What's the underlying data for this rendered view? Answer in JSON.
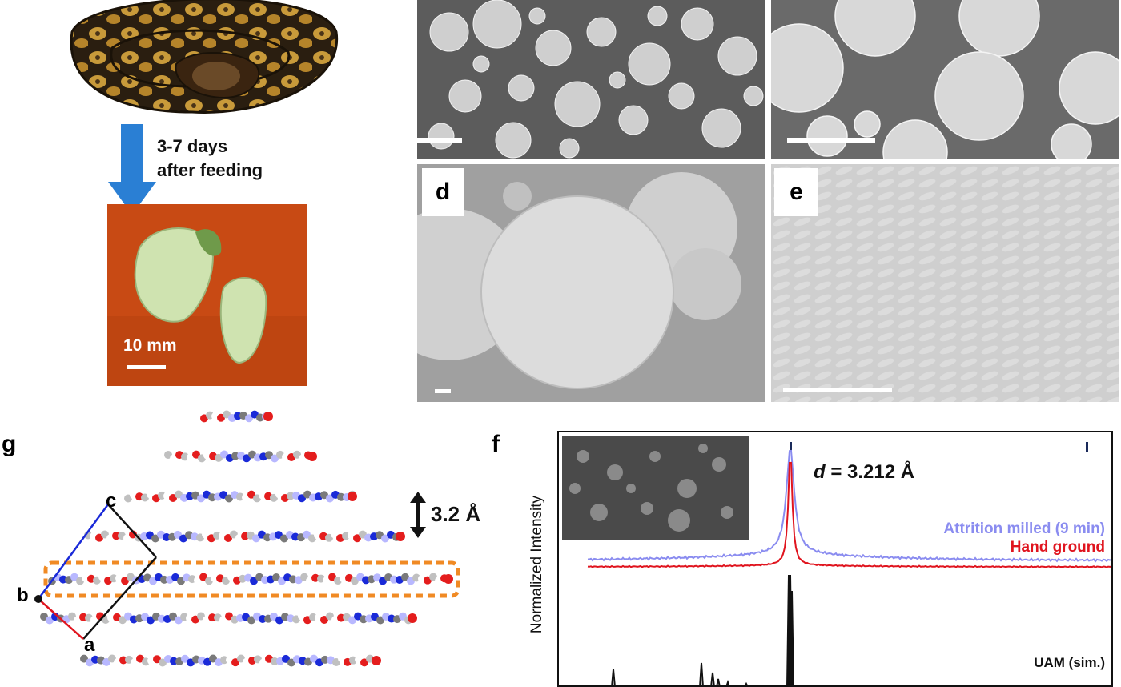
{
  "panel_labels": {
    "d": "d",
    "e": "e",
    "f": "f",
    "g": "g"
  },
  "top_left": {
    "arrow_text_line1": "3-7 days",
    "arrow_text_line2": "after feeding",
    "scale_label": "10 mm",
    "arrow_color": "#2a7fd4",
    "background_color": "#c84a14"
  },
  "crystal": {
    "axis_labels": {
      "a": "a",
      "b": "b",
      "c": "c"
    },
    "spacing_label": "3.2 Å",
    "highlight_color": "#f08a24"
  },
  "xrd": {
    "ylabel": "Normalized Intensity",
    "d_label_italic": "d",
    "d_label_value": "= 3.212 Å",
    "series": [
      {
        "name": "Attrition milled (9 min)",
        "color": "#8a8cf0"
      },
      {
        "name": "Hand ground",
        "color": "#e0141e"
      },
      {
        "name": "UAM (sim.)",
        "color": "#111111"
      }
    ]
  }
}
